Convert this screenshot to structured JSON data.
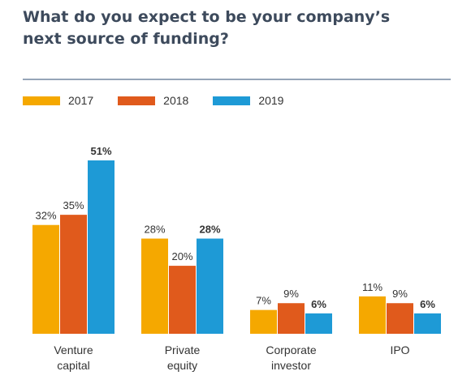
{
  "header": {
    "title_line1": "What do you expect to be your company’s",
    "title_line2": "next source of funding?"
  },
  "chart_data": {
    "type": "bar",
    "title": "What do you expect to be your company’s next source of funding?",
    "categories": [
      [
        "Venture",
        "capital"
      ],
      [
        "Private",
        "equity"
      ],
      [
        "Corporate",
        "investor"
      ],
      [
        "IPO"
      ]
    ],
    "series": [
      {
        "name": "2017",
        "color": "#f5a800",
        "values": [
          32,
          28,
          7,
          11
        ],
        "labels": [
          "32%",
          "28%",
          "7%",
          "11%"
        ]
      },
      {
        "name": "2018",
        "color": "#e05a1c",
        "values": [
          35,
          20,
          9,
          9
        ],
        "labels": [
          "35%",
          "20%",
          "9%",
          "9%"
        ]
      },
      {
        "name": "2019",
        "color": "#1e9ad6",
        "values": [
          51,
          28,
          6,
          6
        ],
        "labels": [
          "51%",
          "28%",
          "6%",
          "6%"
        ]
      }
    ],
    "bold_series": "2019",
    "ylim": [
      0,
      51
    ],
    "legend_position": "top-left",
    "grid": false
  }
}
